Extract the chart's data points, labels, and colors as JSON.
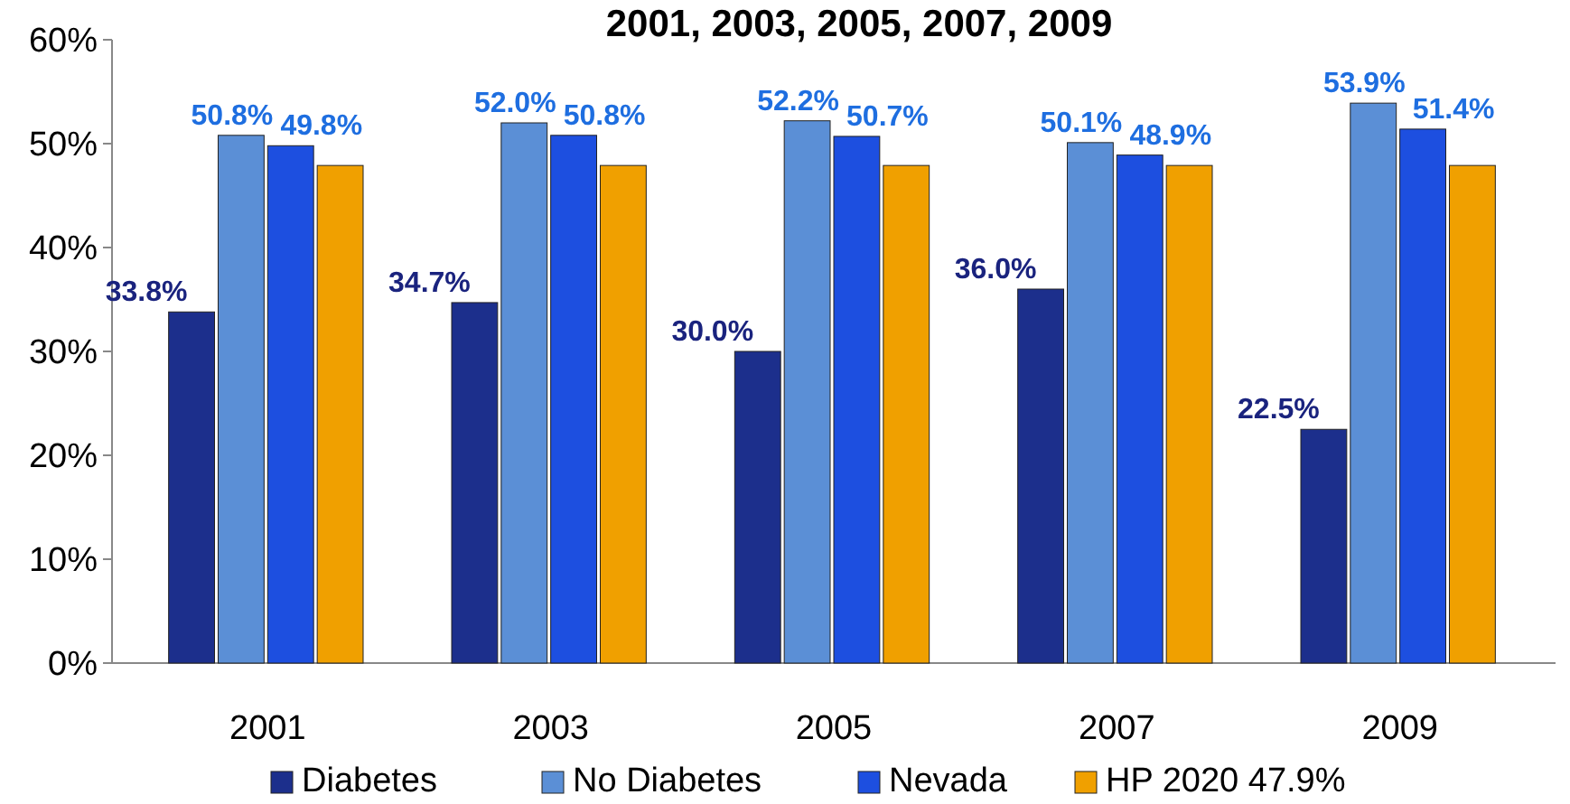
{
  "chart_data": {
    "type": "bar",
    "title": "2001, 2003, 2005, 2007, 2009",
    "categories": [
      "2001",
      "2003",
      "2005",
      "2007",
      "2009"
    ],
    "series": [
      {
        "name": "Diabetes",
        "color": "#1c2f8c",
        "values": [
          33.8,
          34.7,
          30.0,
          36.0,
          22.5
        ],
        "value_labels": [
          "33.8%",
          "34.7%",
          "30.0%",
          "36.0%",
          "22.5%"
        ]
      },
      {
        "name": "No Diabetes",
        "color": "#5b8fd6",
        "values": [
          50.8,
          52.0,
          52.2,
          50.1,
          53.9
        ],
        "value_labels": [
          "50.8%",
          "52.0%",
          "52.2%",
          "50.1%",
          "53.9%"
        ]
      },
      {
        "name": "Nevada",
        "color": "#1d4fe0",
        "values": [
          49.8,
          50.8,
          50.7,
          48.9,
          51.4
        ],
        "value_labels": [
          "49.8%",
          "50.8%",
          "50.7%",
          "48.9%",
          "51.4%"
        ]
      },
      {
        "name": "HP 2020 47.9%",
        "color": "#f0a000",
        "values": [
          47.9,
          47.9,
          47.9,
          47.9,
          47.9
        ]
      }
    ],
    "ylim": [
      0,
      60
    ],
    "yticks": [
      {
        "value": 0,
        "label": "0%"
      },
      {
        "value": 10,
        "label": "10%"
      },
      {
        "value": 20,
        "label": "20%"
      },
      {
        "value": 30,
        "label": "30%"
      },
      {
        "value": 40,
        "label": "40%"
      },
      {
        "value": 50,
        "label": "50%"
      },
      {
        "value": 60,
        "label": "60%"
      }
    ],
    "grid": false,
    "legend": "bottom"
  }
}
